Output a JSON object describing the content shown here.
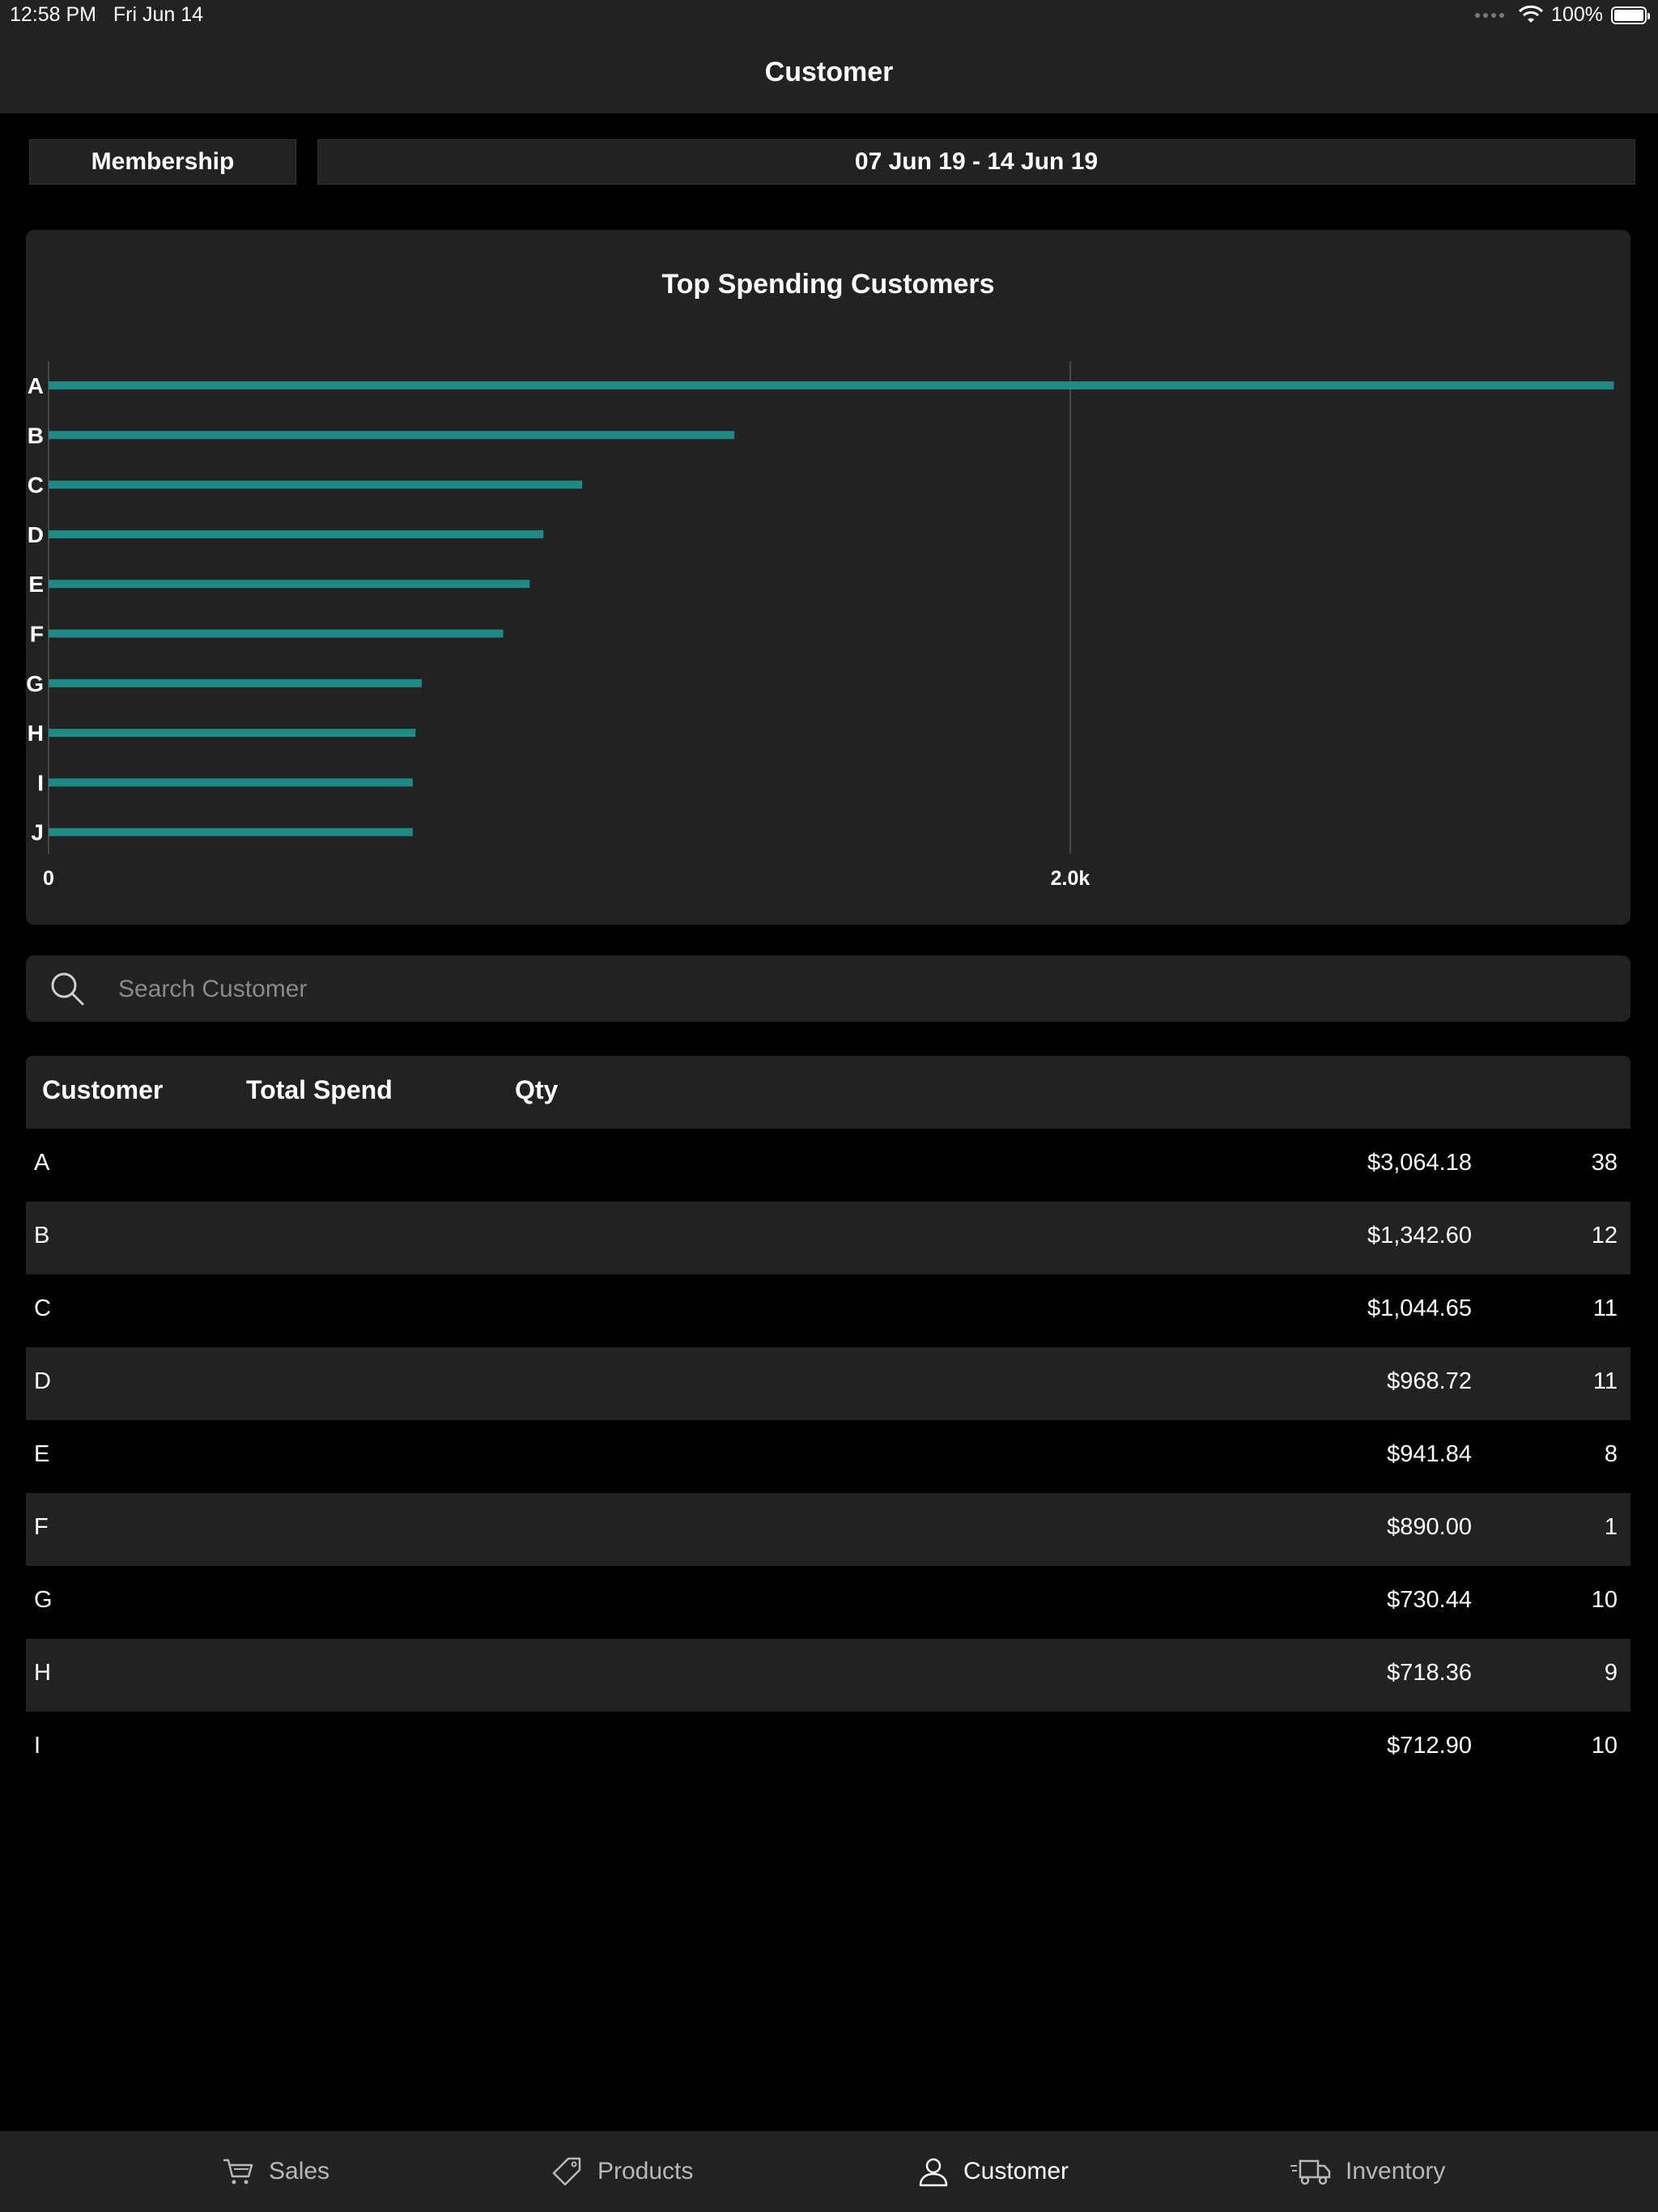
{
  "status_bar": {
    "time": "12:58 PM",
    "date": "Fri Jun 14",
    "battery": "100%"
  },
  "nav": {
    "title": "Customer"
  },
  "filters": {
    "membership_label": "Membership",
    "date_range": "07 Jun 19 - 14 Jun 19"
  },
  "chart_data": {
    "type": "bar",
    "orientation": "horizontal",
    "title": "Top Spending Customers",
    "categories": [
      "A",
      "B",
      "C",
      "D",
      "E",
      "F",
      "G",
      "H",
      "I",
      "J"
    ],
    "values": [
      3064.18,
      1342.6,
      1044.65,
      968.72,
      941.84,
      890.0,
      730.44,
      718.36,
      712.9,
      712.9
    ],
    "x_ticks": [
      "0",
      "2.0k"
    ],
    "grid": true,
    "color": "#1d8a86"
  },
  "search": {
    "placeholder": "Search Customer"
  },
  "table": {
    "headers": {
      "customer": "Customer",
      "total_spend": "Total Spend",
      "qty": "Qty"
    },
    "rows": [
      {
        "customer": "A",
        "total_spend": "$3,064.18",
        "qty": "38"
      },
      {
        "customer": "B",
        "total_spend": "$1,342.60",
        "qty": "12"
      },
      {
        "customer": "C",
        "total_spend": "$1,044.65",
        "qty": "11"
      },
      {
        "customer": "D",
        "total_spend": "$968.72",
        "qty": "11"
      },
      {
        "customer": "E",
        "total_spend": "$941.84",
        "qty": "8"
      },
      {
        "customer": "F",
        "total_spend": "$890.00",
        "qty": "1"
      },
      {
        "customer": "G",
        "total_spend": "$730.44",
        "qty": "10"
      },
      {
        "customer": "H",
        "total_spend": "$718.36",
        "qty": "9"
      },
      {
        "customer": "I",
        "total_spend": "$712.90",
        "qty": "10"
      }
    ]
  },
  "tabs": [
    {
      "label": "Sales",
      "icon": "cart-icon",
      "active": false
    },
    {
      "label": "Products",
      "icon": "tag-icon",
      "active": false
    },
    {
      "label": "Customer",
      "icon": "person-icon",
      "active": true
    },
    {
      "label": "Inventory",
      "icon": "truck-icon",
      "active": false
    }
  ]
}
